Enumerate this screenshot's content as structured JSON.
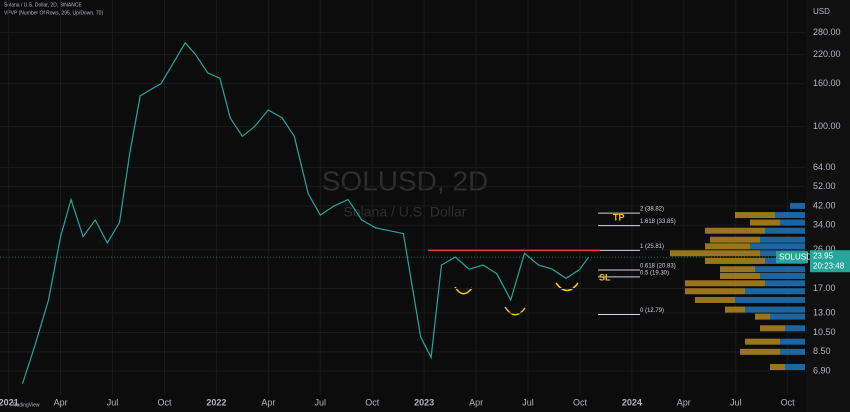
{
  "chart_data": {
    "type": "line",
    "header": "Solana / U.S. Dollar, 2D, BINANCE",
    "indicator": "VPVP (Number Of Rows, 295, Up/Down, 70)",
    "watermark": "SOLUSD, 2D",
    "watermark_subtitle": "Solana / U.S. Dollar",
    "currency": "USD",
    "footer": "TradingView",
    "log_scale": true,
    "grid": true,
    "series": [
      {
        "name": "SOLUSD",
        "color": "#26a69a",
        "x": [
          0.8,
          1.5,
          2.3,
          3,
          3.6,
          4.3,
          5,
          5.7,
          6.4,
          7,
          7.6,
          8.2,
          8.8,
          9.5,
          10.2,
          10.8,
          11.5,
          12.2,
          12.8,
          13.5,
          14.2,
          15,
          15.8,
          16.5,
          17.3,
          18,
          18.8,
          19.6,
          20.4,
          21.2,
          22,
          22.8,
          23.8,
          24.4,
          25,
          25.8,
          26.6,
          27.4,
          28.2,
          29,
          29.8,
          30.6,
          31.4,
          32.2,
          33,
          33.5
        ],
        "values": [
          6,
          9,
          15,
          30,
          45,
          30,
          36,
          28,
          35,
          75,
          140,
          150,
          160,
          200,
          250,
          220,
          180,
          170,
          110,
          90,
          100,
          120,
          110,
          90,
          48,
          38,
          42,
          45,
          36,
          33,
          32,
          31,
          10,
          8,
          22,
          24,
          21,
          22,
          20,
          15,
          25,
          22,
          21,
          19,
          21,
          23.95
        ]
      }
    ],
    "current_price": 23.95,
    "current_price_label": "23.95",
    "countdown": "20:23:48",
    "fib_levels": [
      {
        "label": "2 (38.82)",
        "price": 38.82
      },
      {
        "label": "1.618 (33.85)",
        "price": 33.85
      },
      {
        "label": "1 (25.81)",
        "price": 25.81
      },
      {
        "label": "0.618 (20.83)",
        "price": 20.83
      },
      {
        "label": "0.5 (19.30)",
        "price": 19.3
      },
      {
        "label": "0 (12.79)",
        "price": 12.79
      }
    ],
    "tp_label": "TP",
    "sl_label": "SL",
    "volume_profile": {
      "price": [
        42,
        38,
        35,
        32,
        29,
        27,
        25,
        23,
        21,
        19.5,
        18,
        16.5,
        15,
        13.5,
        12.5,
        11,
        9.5,
        8.5,
        7.2
      ],
      "up": [
        0,
        40,
        30,
        60,
        50,
        45,
        90,
        60,
        35,
        40,
        80,
        60,
        40,
        20,
        15,
        25,
        35,
        40,
        15
      ],
      "down": [
        15,
        30,
        25,
        40,
        45,
        55,
        45,
        40,
        50,
        45,
        40,
        60,
        70,
        60,
        35,
        20,
        25,
        25,
        20
      ]
    },
    "xlim": [
      -0.5,
      46
    ],
    "ylim": [
      5.3,
      400
    ],
    "xticks": [
      {
        "value": 0,
        "label": "2021"
      },
      {
        "value": 3,
        "label": "Apr"
      },
      {
        "value": 6,
        "label": "Jul"
      },
      {
        "value": 9,
        "label": "Oct"
      },
      {
        "value": 12,
        "label": "2022"
      },
      {
        "value": 15,
        "label": "Apr"
      },
      {
        "value": 18,
        "label": "Jul"
      },
      {
        "value": 21,
        "label": "Oct"
      },
      {
        "value": 24,
        "label": "2023"
      },
      {
        "value": 27,
        "label": "Apr"
      },
      {
        "value": 30,
        "label": "Jul"
      },
      {
        "value": 33,
        "label": "Oct"
      },
      {
        "value": 36,
        "label": "2024"
      },
      {
        "value": 39,
        "label": "Apr"
      },
      {
        "value": 42,
        "label": "Jul"
      },
      {
        "value": 45,
        "label": "Oct"
      }
    ],
    "yticks": [
      {
        "value": 280,
        "label": "280.00"
      },
      {
        "value": 220,
        "label": "220.00"
      },
      {
        "value": 160,
        "label": "160.00"
      },
      {
        "value": 100,
        "label": "100.00"
      },
      {
        "value": 64,
        "label": "64.00"
      },
      {
        "value": 52,
        "label": "52.00"
      },
      {
        "value": 42,
        "label": "42.00"
      },
      {
        "value": 34,
        "label": "34.00"
      },
      {
        "value": 26,
        "label": "26.00"
      },
      {
        "value": 17,
        "label": "17.00"
      },
      {
        "value": 13,
        "label": "13.00"
      },
      {
        "value": 10.5,
        "label": "10.50"
      },
      {
        "value": 8.5,
        "label": "8.50"
      },
      {
        "value": 6.9,
        "label": "6.90"
      }
    ]
  }
}
